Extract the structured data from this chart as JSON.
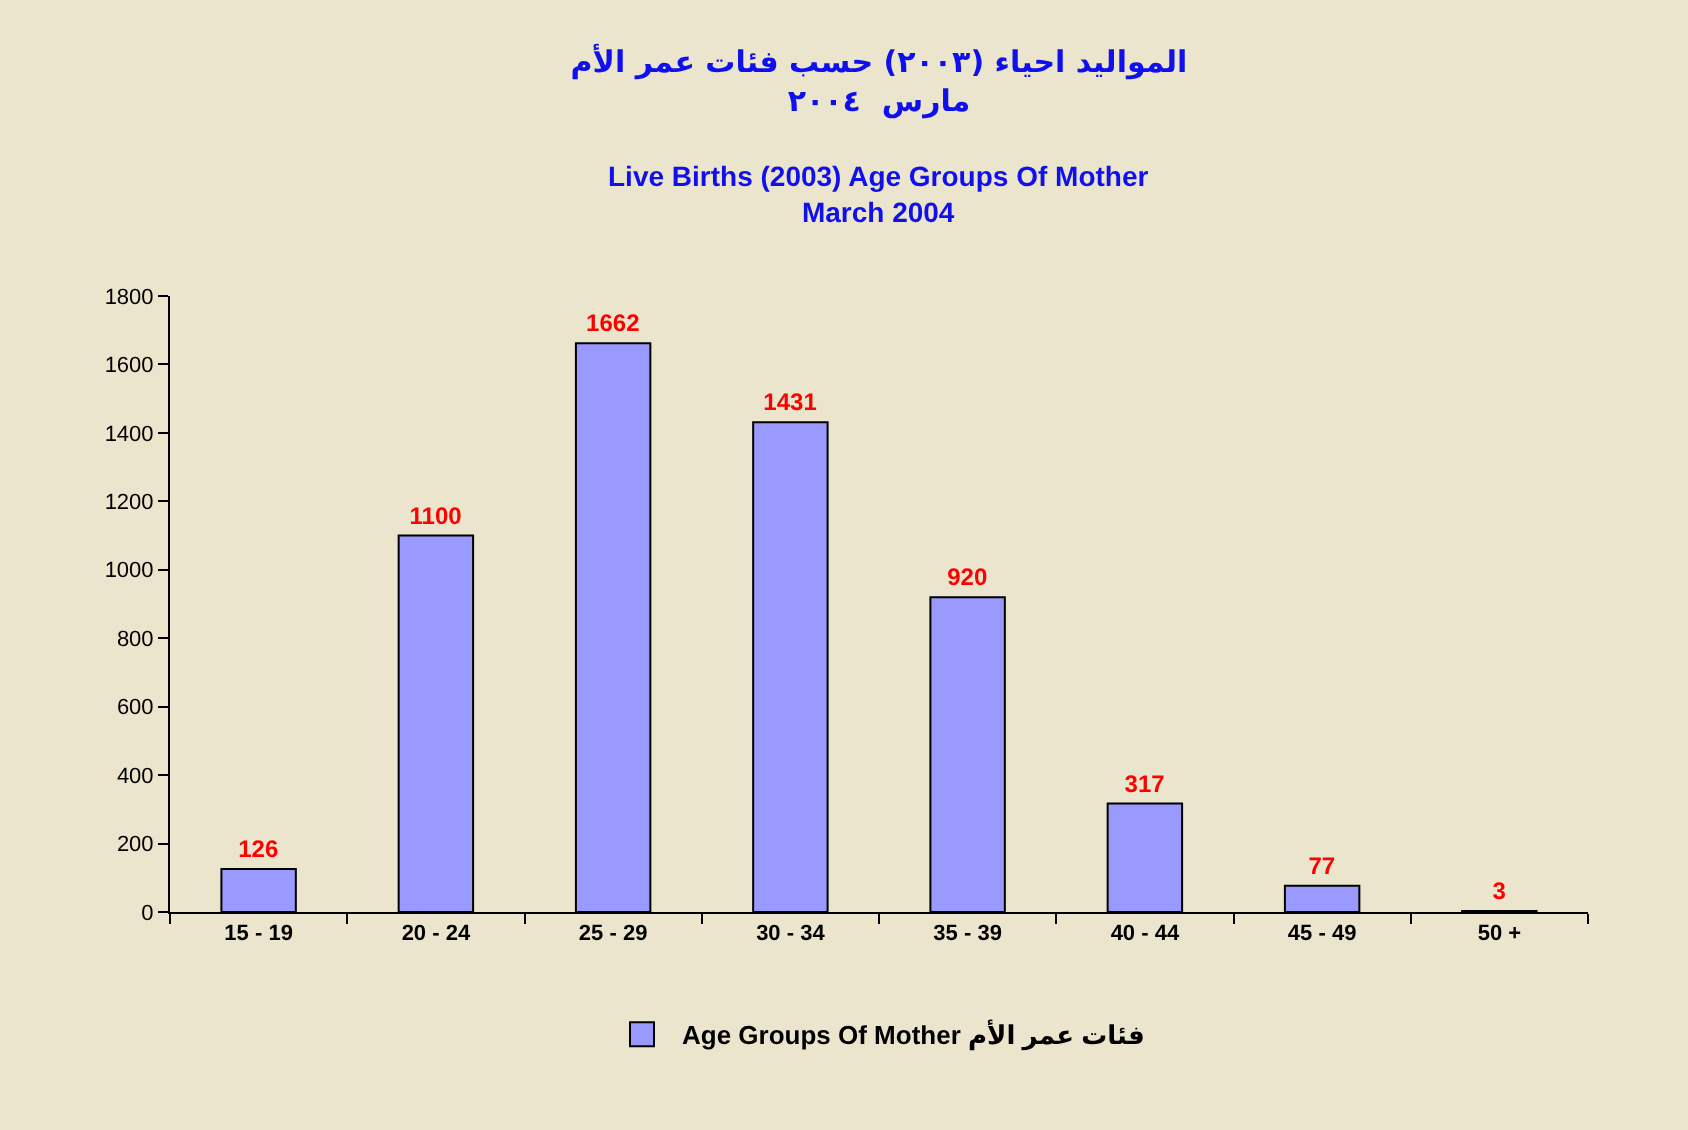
{
  "chart_data": {
    "type": "bar",
    "title": "المواليد احياء (٢٠٠٣) حسب فئات عمر الأم\nمارس  ٢٠٠٤",
    "subtitle": "Live Births (2003) Age Groups Of Mother\nMarch 2004",
    "categories": [
      "15 - 19",
      "20 - 24",
      "25 - 29",
      "30 - 34",
      "35 - 39",
      "40 - 44",
      "45 - 49",
      "50 +"
    ],
    "series": [
      {
        "name": "Age Groups Of Mother فئات عمر الأم",
        "color": "#9999ff",
        "values": [
          126,
          1100,
          1662,
          1431,
          920,
          317,
          77,
          3
        ]
      }
    ],
    "ylim": [
      0,
      1800
    ],
    "yticks": [
      0,
      200,
      400,
      600,
      800,
      1000,
      1200,
      1400,
      1600,
      1800
    ],
    "data_labels": true,
    "legend": "bottom",
    "grid": false
  }
}
